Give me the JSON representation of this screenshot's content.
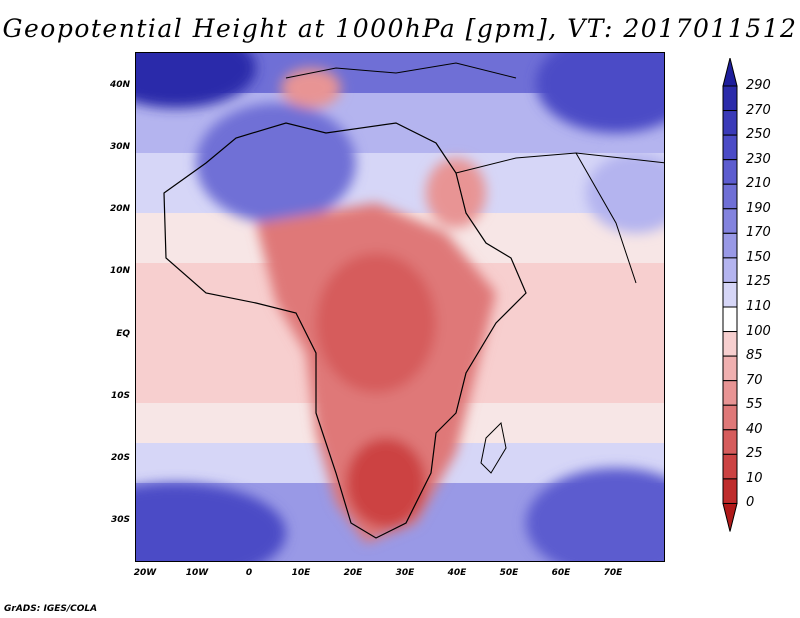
{
  "title": "Geopotential Height at 1000hPa [gpm], VT: 2017011512",
  "credit": "GrADS: IGES/COLA",
  "map": {
    "lat_labels": [
      "40N",
      "30N",
      "20N",
      "10N",
      "EQ",
      "10S",
      "20S",
      "30S"
    ],
    "lon_labels": [
      "20W",
      "10W",
      "0",
      "10E",
      "20E",
      "30E",
      "40E",
      "50E",
      "60E",
      "70E"
    ]
  },
  "colorbar": {
    "labels": [
      "290",
      "270",
      "250",
      "230",
      "210",
      "190",
      "170",
      "150",
      "125",
      "110",
      "100",
      "85",
      "70",
      "55",
      "40",
      "25",
      "10",
      "0"
    ],
    "colors": [
      "#1e1e9c",
      "#2b2baa",
      "#3a3ab8",
      "#4b4bc6",
      "#5c5ccf",
      "#6f6fd6",
      "#8383de",
      "#9999e6",
      "#b4b4ef",
      "#d6d6f7",
      "#ffffff",
      "#f7cfcf",
      "#f0b0b0",
      "#e89494",
      "#df7878",
      "#d65c5c",
      "#cc4343",
      "#bf2c2c",
      "#b01a1a"
    ]
  }
}
